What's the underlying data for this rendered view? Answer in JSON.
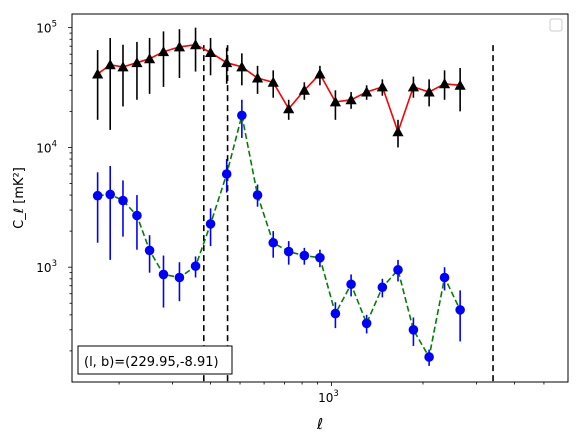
{
  "chart_data": {
    "type": "line",
    "xlabel": "ℓ",
    "ylabel": "C_ℓ  [mK²]",
    "xscale": "log",
    "yscale": "log",
    "xlim": [
      140,
      6000
    ],
    "ylim": [
      110,
      130000
    ],
    "x_major_ticks": [
      {
        "value": 1000,
        "base": "10",
        "exp": "3"
      }
    ],
    "y_major_ticks": [
      {
        "value": 1000,
        "base": "10",
        "exp": "3"
      },
      {
        "value": 10000,
        "base": "10",
        "exp": "4"
      },
      {
        "value": 100000,
        "base": "10",
        "exp": "5"
      }
    ],
    "vlines": [
      380,
      455,
      3400
    ],
    "legend": {
      "placement": "top-right",
      "entries": []
    },
    "annotation": "(l, b)=(229.95,-8.91)",
    "series": [
      {
        "marker": "triangle",
        "line_color": "#ff0000",
        "line_style": "solid",
        "marker_color": "#000000",
        "errorbar_color": "#000000",
        "points": [
          {
            "x": 170,
            "y": 41000,
            "lo": 17000,
            "hi": 65000
          },
          {
            "x": 187,
            "y": 49000,
            "lo": 14000,
            "hi": 82000
          },
          {
            "x": 206,
            "y": 47000,
            "lo": 22000,
            "hi": 72000
          },
          {
            "x": 229,
            "y": 51000,
            "lo": 25000,
            "hi": 76000
          },
          {
            "x": 252,
            "y": 55000,
            "lo": 28000,
            "hi": 82000
          },
          {
            "x": 280,
            "y": 63000,
            "lo": 32000,
            "hi": 93000
          },
          {
            "x": 316,
            "y": 69000,
            "lo": 38000,
            "hi": 97000
          },
          {
            "x": 357,
            "y": 72000,
            "lo": 43000,
            "hi": 100000
          },
          {
            "x": 400,
            "y": 62000,
            "lo": 40000,
            "hi": 82000
          },
          {
            "x": 452,
            "y": 51000,
            "lo": 34000,
            "hi": 68000
          },
          {
            "x": 507,
            "y": 47000,
            "lo": 33000,
            "hi": 61000
          },
          {
            "x": 571,
            "y": 38000,
            "lo": 28000,
            "hi": 48000
          },
          {
            "x": 643,
            "y": 35000,
            "lo": 26000,
            "hi": 44000
          },
          {
            "x": 723,
            "y": 21000,
            "lo": 17000,
            "hi": 25000
          },
          {
            "x": 814,
            "y": 30000,
            "lo": 25000,
            "hi": 35000
          },
          {
            "x": 916,
            "y": 41000,
            "lo": 33000,
            "hi": 48000
          },
          {
            "x": 1030,
            "y": 24000,
            "lo": 17000,
            "hi": 30000
          },
          {
            "x": 1160,
            "y": 25000,
            "lo": 21000,
            "hi": 29000
          },
          {
            "x": 1305,
            "y": 29000,
            "lo": 25000,
            "hi": 33000
          },
          {
            "x": 1470,
            "y": 32000,
            "lo": 27000,
            "hi": 37000
          },
          {
            "x": 1655,
            "y": 13500,
            "lo": 10000,
            "hi": 17000
          },
          {
            "x": 1860,
            "y": 32000,
            "lo": 26000,
            "hi": 39000
          },
          {
            "x": 2095,
            "y": 29000,
            "lo": 22000,
            "hi": 37000
          },
          {
            "x": 2355,
            "y": 34000,
            "lo": 25000,
            "hi": 44000
          },
          {
            "x": 2650,
            "y": 33000,
            "lo": 20000,
            "hi": 46000
          }
        ]
      },
      {
        "marker": "circle",
        "line_color": "#008000",
        "line_style": "dashed",
        "marker_color": "#0000ff",
        "errorbar_color": "#0000ff",
        "points": [
          {
            "x": 170,
            "y": 3950,
            "lo": 1600,
            "hi": 6200
          },
          {
            "x": 187,
            "y": 4050,
            "lo": 1150,
            "hi": 7000
          },
          {
            "x": 206,
            "y": 3600,
            "lo": 1800,
            "hi": 5300
          },
          {
            "x": 229,
            "y": 2700,
            "lo": 1400,
            "hi": 4000
          },
          {
            "x": 252,
            "y": 1380,
            "lo": 900,
            "hi": 1850
          },
          {
            "x": 280,
            "y": 870,
            "lo": 460,
            "hi": 1250
          },
          {
            "x": 316,
            "y": 820,
            "lo": 520,
            "hi": 1100
          },
          {
            "x": 357,
            "y": 1020,
            "lo": 820,
            "hi": 1230
          },
          {
            "x": 400,
            "y": 2300,
            "lo": 1500,
            "hi": 3100
          },
          {
            "x": 452,
            "y": 6000,
            "lo": 4200,
            "hi": 8000
          },
          {
            "x": 507,
            "y": 18500,
            "lo": 12000,
            "hi": 25000
          },
          {
            "x": 571,
            "y": 4000,
            "lo": 3200,
            "hi": 4900
          },
          {
            "x": 643,
            "y": 1600,
            "lo": 1200,
            "hi": 2000
          },
          {
            "x": 723,
            "y": 1350,
            "lo": 1050,
            "hi": 1650
          },
          {
            "x": 814,
            "y": 1250,
            "lo": 1050,
            "hi": 1450
          },
          {
            "x": 916,
            "y": 1200,
            "lo": 1000,
            "hi": 1400
          },
          {
            "x": 1030,
            "y": 410,
            "lo": 310,
            "hi": 510
          },
          {
            "x": 1160,
            "y": 720,
            "lo": 570,
            "hi": 870
          },
          {
            "x": 1305,
            "y": 340,
            "lo": 280,
            "hi": 400
          },
          {
            "x": 1470,
            "y": 680,
            "lo": 560,
            "hi": 800
          },
          {
            "x": 1655,
            "y": 950,
            "lo": 760,
            "hi": 1150
          },
          {
            "x": 1860,
            "y": 300,
            "lo": 220,
            "hi": 380
          },
          {
            "x": 2095,
            "y": 178,
            "lo": 150,
            "hi": 205
          },
          {
            "x": 2355,
            "y": 820,
            "lo": 640,
            "hi": 1000
          },
          {
            "x": 2650,
            "y": 440,
            "lo": 240,
            "hi": 640
          }
        ]
      }
    ]
  }
}
